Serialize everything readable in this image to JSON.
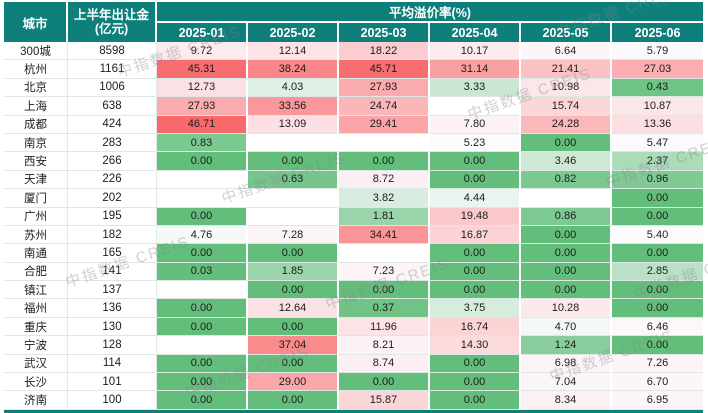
{
  "header": {
    "city": "城市",
    "amount_line1": "上半年出让金",
    "amount_line2": "(亿元)",
    "premium_title": "平均溢价率(%)"
  },
  "watermark_text": "中指数据 CREIS",
  "colors": {
    "header_bg": "#0E7F7A",
    "header_text": "#FFFFFF",
    "grid_line": "#DDE8E6",
    "bottom_border": "#0E7F7A"
  },
  "chart_data": {
    "type": "table",
    "title": "平均溢价率(%)",
    "amount_column_label": "上半年出让金(亿元)",
    "city_column_label": "城市",
    "month_columns": [
      "2025-01",
      "2025-02",
      "2025-03",
      "2025-04",
      "2025-05",
      "2025-06"
    ],
    "color_scale": {
      "min_color": "#63BE7B",
      "mid_color": "#FCFCFF",
      "max_color": "#F8696B",
      "empty_color": "#FFFFFF",
      "min_value": 0,
      "mid_value": 5,
      "max_value": 46.71
    },
    "rows": [
      {
        "city": "300城",
        "amount": "8598",
        "values": [
          "9.72",
          "12.14",
          "18.22",
          "10.17",
          "6.64",
          "5.79"
        ]
      },
      {
        "city": "杭州",
        "amount": "1161",
        "values": [
          "45.31",
          "38.24",
          "45.71",
          "31.14",
          "21.41",
          "27.03"
        ]
      },
      {
        "city": "北京",
        "amount": "1006",
        "values": [
          "12.73",
          "4.03",
          "27.93",
          "3.33",
          "10.98",
          "0.43"
        ]
      },
      {
        "city": "上海",
        "amount": "638",
        "values": [
          "27.93",
          "33.56",
          "24.74",
          null,
          "15.74",
          "10.87"
        ]
      },
      {
        "city": "成都",
        "amount": "424",
        "values": [
          "46.71",
          "13.09",
          "29.41",
          "7.80",
          "24.28",
          "13.36"
        ]
      },
      {
        "city": "南京",
        "amount": "283",
        "values": [
          "0.83",
          null,
          null,
          "5.23",
          "0.00",
          "5.47"
        ]
      },
      {
        "city": "西安",
        "amount": "266",
        "values": [
          "0.00",
          "0.00",
          "0.00",
          "0.00",
          "3.46",
          "2.37"
        ]
      },
      {
        "city": "天津",
        "amount": "226",
        "values": [
          null,
          "0.63",
          "8.72",
          "0.00",
          "0.82",
          "0.96"
        ]
      },
      {
        "city": "厦门",
        "amount": "202",
        "values": [
          null,
          null,
          "3.82",
          "4.44",
          null,
          "0.00"
        ]
      },
      {
        "city": "广州",
        "amount": "195",
        "values": [
          "0.00",
          null,
          "1.81",
          "19.48",
          "0.86",
          "0.00"
        ]
      },
      {
        "city": "苏州",
        "amount": "182",
        "values": [
          "4.76",
          "7.28",
          "34.41",
          "16.87",
          "0.00",
          "5.40"
        ]
      },
      {
        "city": "南通",
        "amount": "165",
        "values": [
          "0.00",
          "0.00",
          null,
          "0.00",
          "0.00",
          "0.00"
        ]
      },
      {
        "city": "合肥",
        "amount": "141",
        "values": [
          "0.03",
          "1.85",
          "7.23",
          "0.00",
          "0.00",
          "2.85"
        ]
      },
      {
        "city": "镇江",
        "amount": "137",
        "values": [
          null,
          "0.00",
          "0.00",
          "0.00",
          "0.00",
          "0.00"
        ]
      },
      {
        "city": "福州",
        "amount": "136",
        "values": [
          "0.00",
          "12.64",
          "0.37",
          "3.75",
          "10.28",
          "0.00"
        ]
      },
      {
        "city": "重庆",
        "amount": "130",
        "values": [
          "0.00",
          "0.00",
          "11.96",
          "16.74",
          "4.70",
          "6.46"
        ]
      },
      {
        "city": "宁波",
        "amount": "128",
        "values": [
          null,
          "37.04",
          "8.21",
          "14.30",
          "1.24",
          "0.00"
        ]
      },
      {
        "city": "武汉",
        "amount": "114",
        "values": [
          "0.00",
          "0.00",
          "8.74",
          "0.00",
          "6.98",
          "7.26"
        ]
      },
      {
        "city": "长沙",
        "amount": "101",
        "values": [
          "0.00",
          "29.00",
          "0.00",
          "0.00",
          "7.04",
          "6.70"
        ]
      },
      {
        "city": "济南",
        "amount": "100",
        "values": [
          "0.00",
          "0.00",
          "15.87",
          "0.00",
          "8.34",
          "6.95"
        ]
      }
    ]
  }
}
